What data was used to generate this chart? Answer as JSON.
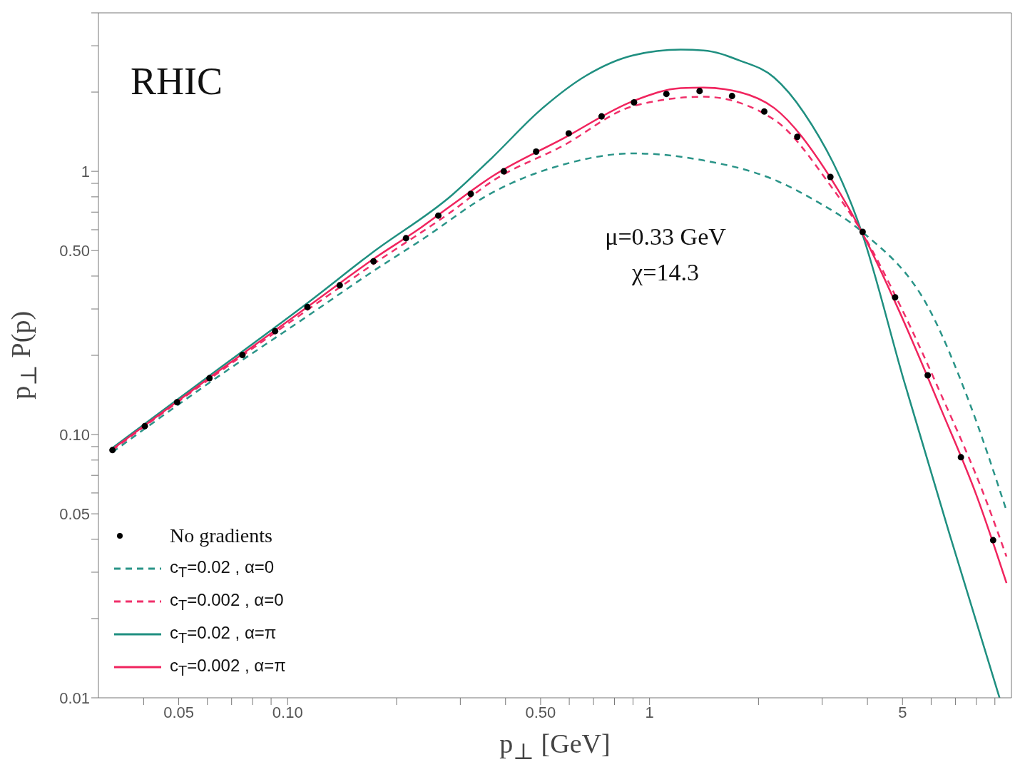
{
  "chart_data": {
    "type": "line",
    "xlabel": "p$_{⊥}$ [GeV]",
    "ylabel": "p$_{⊥}$ P(p)",
    "annotations": [
      "RHIC",
      "μ=0.33 GeV",
      "χ=14.3"
    ],
    "log": "xy",
    "grid": false,
    "legend": "bottom left",
    "xlim": [
      0.03,
      10
    ],
    "ylim": [
      0.01,
      4
    ],
    "xticks": [
      {
        "value": 0.04,
        "label": null
      },
      {
        "value": 0.05,
        "label": "0.05"
      },
      {
        "value": 0.06,
        "label": null
      },
      {
        "value": 0.07,
        "label": null
      },
      {
        "value": 0.08,
        "label": null
      },
      {
        "value": 0.09,
        "label": null
      },
      {
        "value": 0.1,
        "label": "0.10"
      },
      {
        "value": 0.2,
        "label": null
      },
      {
        "value": 0.3,
        "label": null
      },
      {
        "value": 0.4,
        "label": null
      },
      {
        "value": 0.5,
        "label": "0.50"
      },
      {
        "value": 0.6,
        "label": null
      },
      {
        "value": 0.7,
        "label": null
      },
      {
        "value": 0.8,
        "label": null
      },
      {
        "value": 0.9,
        "label": null
      },
      {
        "value": 1,
        "label": "1"
      },
      {
        "value": 2,
        "label": null
      },
      {
        "value": 3,
        "label": null
      },
      {
        "value": 4,
        "label": null
      },
      {
        "value": 5,
        "label": "5"
      },
      {
        "value": 6,
        "label": null
      },
      {
        "value": 7,
        "label": null
      },
      {
        "value": 8,
        "label": null
      },
      {
        "value": 9,
        "label": null
      }
    ],
    "yticks": [
      {
        "value": 0.01,
        "label": "0.01"
      },
      {
        "value": 0.02,
        "label": null
      },
      {
        "value": 0.03,
        "label": null
      },
      {
        "value": 0.04,
        "label": null
      },
      {
        "value": 0.05,
        "label": "0.05"
      },
      {
        "value": 0.06,
        "label": null
      },
      {
        "value": 0.07,
        "label": null
      },
      {
        "value": 0.08,
        "label": null
      },
      {
        "value": 0.09,
        "label": null
      },
      {
        "value": 0.1,
        "label": "0.10"
      },
      {
        "value": 0.2,
        "label": null
      },
      {
        "value": 0.3,
        "label": null
      },
      {
        "value": 0.4,
        "label": null
      },
      {
        "value": 0.5,
        "label": "0.50"
      },
      {
        "value": 0.6,
        "label": null
      },
      {
        "value": 0.7,
        "label": null
      },
      {
        "value": 0.8,
        "label": null
      },
      {
        "value": 0.9,
        "label": null
      },
      {
        "value": 1,
        "label": "1"
      },
      {
        "value": 2,
        "label": null
      },
      {
        "value": 3,
        "label": null
      },
      {
        "value": 4,
        "label": null
      }
    ],
    "series": [
      {
        "name": "No gradients",
        "type": "scatter",
        "marker": "circle",
        "color": "#000000",
        "x": [
          0.0328,
          0.0403,
          0.0495,
          0.0608,
          0.075,
          0.0923,
          0.1134,
          0.1393,
          0.1727,
          0.2123,
          0.2608,
          0.3206,
          0.3956,
          0.486,
          0.598,
          0.737,
          0.906,
          1.113,
          1.375,
          1.69,
          2.075,
          2.56,
          3.16,
          3.88,
          4.77,
          5.87,
          7.25,
          8.9
        ],
        "values": [
          0.0873,
          0.1077,
          0.1327,
          0.1637,
          0.2005,
          0.247,
          0.305,
          0.369,
          0.455,
          0.557,
          0.679,
          0.821,
          1.0,
          1.188,
          1.394,
          1.617,
          1.828,
          1.968,
          2.018,
          1.932,
          1.687,
          1.352,
          0.952,
          0.589,
          0.332,
          0.168,
          0.082,
          0.0397
        ]
      },
      {
        "name": "c$_{T}$=0.02 , α=0",
        "line_style": "dashed",
        "color": "#2a9488",
        "x": [
          0.0328,
          0.0614,
          0.1148,
          0.172,
          0.235,
          0.368,
          0.576,
          0.902,
          1.41,
          2.21,
          2.88,
          3.85,
          5.97,
          7.61,
          9.69
        ],
        "values": [
          0.0857,
          0.159,
          0.285,
          0.417,
          0.55,
          0.831,
          1.06,
          1.17,
          1.1,
          0.929,
          0.772,
          0.592,
          0.294,
          0.135,
          0.0514
        ]
      },
      {
        "name": "c$_{T}$=0.002 , α=0",
        "line_style": "dashed",
        "color": "#f0306a",
        "x": [
          0.0328,
          0.0614,
          0.1148,
          0.172,
          0.284,
          0.368,
          0.576,
          0.902,
          1.41,
          2.21,
          3.16,
          3.85,
          4.91,
          6.42,
          8.4,
          9.69
        ],
        "values": [
          0.0873,
          0.164,
          0.301,
          0.443,
          0.704,
          0.918,
          1.25,
          1.77,
          1.92,
          1.57,
          0.884,
          0.592,
          0.312,
          0.14,
          0.0589,
          0.0344
        ]
      },
      {
        "name": "c$_{T}$=0.02 , α=π",
        "line_style": "solid",
        "color": "#1f8f80",
        "x": [
          0.0328,
          0.0614,
          0.1148,
          0.172,
          0.284,
          0.368,
          0.497,
          0.668,
          0.902,
          1.22,
          1.41,
          1.77,
          2.21,
          2.67,
          3.85,
          5.04,
          6.74,
          9.27
        ],
        "values": [
          0.089,
          0.169,
          0.32,
          0.493,
          0.811,
          1.13,
          1.7,
          2.31,
          2.76,
          2.9,
          2.88,
          2.64,
          2.27,
          1.67,
          0.592,
          0.161,
          0.042,
          0.01
        ]
      },
      {
        "name": "c$_{T}$=0.002 , α=π",
        "line_style": "solid",
        "color": "#f0245e",
        "x": [
          0.0328,
          0.0614,
          0.1148,
          0.172,
          0.235,
          0.284,
          0.368,
          0.576,
          0.902,
          1.22,
          1.41,
          1.77,
          2.21,
          3.16,
          3.85,
          4.91,
          6.42,
          8.0,
          9.69
        ],
        "values": [
          0.088,
          0.166,
          0.309,
          0.463,
          0.615,
          0.744,
          0.958,
          1.33,
          1.85,
          2.07,
          2.08,
          2.0,
          1.74,
          0.946,
          0.592,
          0.292,
          0.123,
          0.0589,
          0.0273
        ]
      }
    ]
  }
}
